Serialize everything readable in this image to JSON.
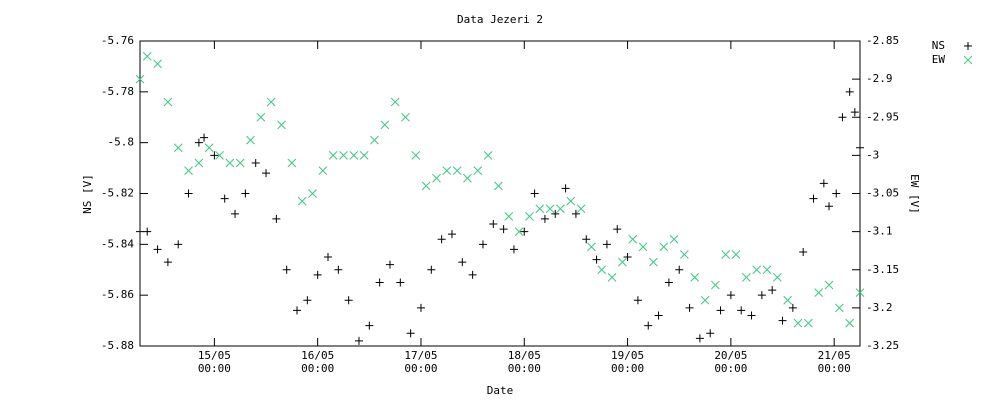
{
  "chart_data": {
    "type": "scatter",
    "title": "Data Jezeri 2",
    "x_label": "Date",
    "y_label": "NS [V]",
    "y2_label": "EW [V]",
    "xlim": [
      14.28,
      21.25
    ],
    "xticks": [
      {
        "value": 15,
        "label": "15/05\n00:00"
      },
      {
        "value": 16,
        "label": "16/05\n00:00"
      },
      {
        "value": 17,
        "label": "17/05\n00:00"
      },
      {
        "value": 18,
        "label": "18/05\n00:00"
      },
      {
        "value": 19,
        "label": "19/05\n00:00"
      },
      {
        "value": 20,
        "label": "20/05\n00:00"
      },
      {
        "value": 21,
        "label": "21/05\n00:00"
      }
    ],
    "ylim": [
      -5.88,
      -5.76
    ],
    "yticks": [
      -5.88,
      -5.86,
      -5.84,
      -5.82,
      -5.8,
      -5.78,
      -5.76
    ],
    "y2lim": [
      -3.25,
      -2.85
    ],
    "y2ticks": [
      -3.25,
      -3.2,
      -3.15,
      -3.1,
      -3.05,
      -3,
      -2.95,
      -2.9,
      -2.85
    ],
    "legend": "right",
    "series": [
      {
        "name": "NS",
        "color": "#000000",
        "marker": "plus",
        "x": [
          14.28,
          14.35,
          14.45,
          14.55,
          14.65,
          14.75,
          14.85,
          14.9,
          15.0,
          15.1,
          15.2,
          15.3,
          15.4,
          15.5,
          15.6,
          15.7,
          15.8,
          15.9,
          16.0,
          16.1,
          16.2,
          16.3,
          16.4,
          16.5,
          16.6,
          16.7,
          16.8,
          16.9,
          17.0,
          17.1,
          17.2,
          17.3,
          17.4,
          17.5,
          17.6,
          17.7,
          17.8,
          17.9,
          18.0,
          18.1,
          18.2,
          18.3,
          18.4,
          18.5,
          18.6,
          18.7,
          18.8,
          18.9,
          19.0,
          19.1,
          19.2,
          19.3,
          19.4,
          19.5,
          19.6,
          19.7,
          19.8,
          19.9,
          20.0,
          20.1,
          20.2,
          20.3,
          20.4,
          20.5,
          20.6,
          20.7,
          20.8,
          20.9,
          20.95,
          21.02,
          21.08,
          21.15,
          21.2,
          21.25
        ],
        "values": [
          -5.835,
          -5.835,
          -5.842,
          -5.847,
          -5.84,
          -5.82,
          -5.8,
          -5.798,
          -5.805,
          -5.822,
          -5.828,
          -5.82,
          -5.808,
          -5.812,
          -5.83,
          -5.85,
          -5.866,
          -5.862,
          -5.852,
          -5.845,
          -5.85,
          -5.862,
          -5.878,
          -5.872,
          -5.855,
          -5.848,
          -5.855,
          -5.875,
          -5.865,
          -5.85,
          -5.838,
          -5.836,
          -5.847,
          -5.852,
          -5.84,
          -5.832,
          -5.834,
          -5.842,
          -5.835,
          -5.82,
          -5.83,
          -5.828,
          -5.818,
          -5.828,
          -5.838,
          -5.846,
          -5.84,
          -5.834,
          -5.845,
          -5.862,
          -5.872,
          -5.868,
          -5.855,
          -5.85,
          -5.865,
          -5.877,
          -5.875,
          -5.866,
          -5.86,
          -5.866,
          -5.868,
          -5.86,
          -5.858,
          -5.87,
          -5.865,
          -5.843,
          -5.822,
          -5.816,
          -5.825,
          -5.82,
          -5.79,
          -5.78,
          -5.788,
          -5.802
        ]
      },
      {
        "name": "EW",
        "color": "#3cc886",
        "marker": "cross",
        "axis": "y2",
        "x": [
          14.28,
          14.35,
          14.45,
          14.55,
          14.65,
          14.75,
          14.85,
          14.95,
          15.05,
          15.15,
          15.25,
          15.35,
          15.45,
          15.55,
          15.65,
          15.75,
          15.85,
          15.95,
          16.05,
          16.15,
          16.25,
          16.35,
          16.45,
          16.55,
          16.65,
          16.75,
          16.85,
          16.95,
          17.05,
          17.15,
          17.25,
          17.35,
          17.45,
          17.55,
          17.65,
          17.75,
          17.85,
          17.95,
          18.05,
          18.15,
          18.25,
          18.35,
          18.45,
          18.55,
          18.65,
          18.75,
          18.85,
          18.95,
          19.05,
          19.15,
          19.25,
          19.35,
          19.45,
          19.55,
          19.65,
          19.75,
          19.85,
          19.95,
          20.05,
          20.15,
          20.25,
          20.35,
          20.45,
          20.55,
          20.65,
          20.75,
          20.85,
          20.95,
          21.05,
          21.15,
          21.25
        ],
        "values": [
          -2.9,
          -2.87,
          -2.88,
          -2.93,
          -2.99,
          -3.02,
          -3.01,
          -2.99,
          -3.0,
          -3.01,
          -3.01,
          -2.98,
          -2.95,
          -2.93,
          -2.96,
          -3.01,
          -3.06,
          -3.05,
          -3.02,
          -3.0,
          -3.0,
          -3.0,
          -3.0,
          -2.98,
          -2.96,
          -2.93,
          -2.95,
          -3.0,
          -3.04,
          -3.03,
          -3.02,
          -3.02,
          -3.03,
          -3.02,
          -3.0,
          -3.04,
          -3.08,
          -3.1,
          -3.08,
          -3.07,
          -3.07,
          -3.07,
          -3.06,
          -3.07,
          -3.12,
          -3.15,
          -3.16,
          -3.14,
          -3.11,
          -3.12,
          -3.14,
          -3.12,
          -3.11,
          -3.13,
          -3.16,
          -3.19,
          -3.17,
          -3.13,
          -3.13,
          -3.16,
          -3.15,
          -3.15,
          -3.16,
          -3.19,
          -3.22,
          -3.22,
          -3.18,
          -3.17,
          -3.2,
          -3.22,
          -3.18
        ]
      }
    ]
  }
}
